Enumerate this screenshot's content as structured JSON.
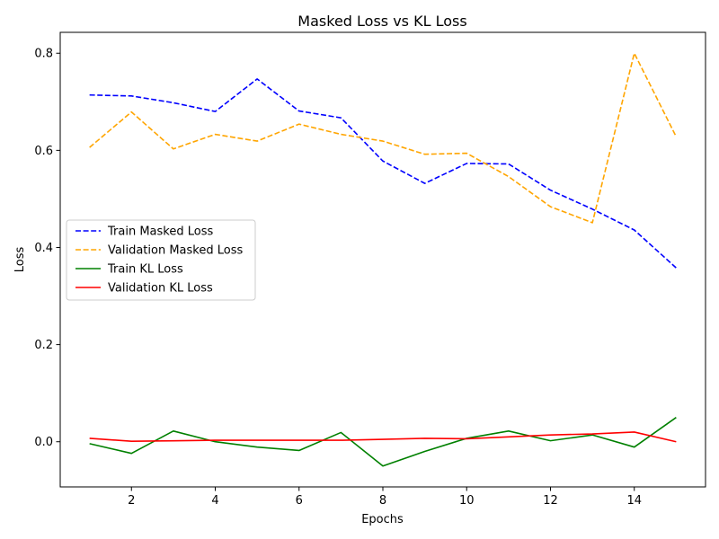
{
  "chart_data": {
    "type": "line",
    "title": "Masked Loss vs KL Loss",
    "xlabel": "Epochs",
    "ylabel": "Loss",
    "xlim": [
      0.3,
      15.7
    ],
    "ylim": [
      -0.093,
      0.843
    ],
    "xticks": [
      2,
      4,
      6,
      8,
      10,
      12,
      14
    ],
    "yticks": [
      0.0,
      0.2,
      0.4,
      0.6,
      0.8
    ],
    "ytick_labels": [
      "0.0",
      "0.2",
      "0.4",
      "0.6",
      "0.8"
    ],
    "grid": false,
    "legend_position": "center-left",
    "x": [
      1,
      2,
      3,
      4,
      5,
      6,
      7,
      8,
      9,
      10,
      11,
      12,
      13,
      14,
      15
    ],
    "series": [
      {
        "name": "Train Masked Loss",
        "color": "#0000ff",
        "dash": "dashed",
        "values": [
          0.714,
          0.712,
          0.698,
          0.68,
          0.747,
          0.681,
          0.667,
          0.578,
          0.532,
          0.573,
          0.572,
          0.518,
          0.479,
          0.436,
          0.358
        ]
      },
      {
        "name": "Validation Masked Loss",
        "color": "#ffa500",
        "dash": "dashed",
        "values": [
          0.606,
          0.679,
          0.603,
          0.633,
          0.619,
          0.654,
          0.633,
          0.619,
          0.592,
          0.594,
          0.546,
          0.484,
          0.451,
          0.8,
          0.628
        ]
      },
      {
        "name": "Train KL Loss",
        "color": "#008000",
        "dash": "solid",
        "values": [
          -0.004,
          -0.024,
          0.022,
          0.0,
          -0.011,
          -0.018,
          0.019,
          -0.05,
          -0.02,
          0.007,
          0.022,
          0.002,
          0.014,
          -0.011,
          0.05
        ]
      },
      {
        "name": "Validation KL Loss",
        "color": "#ff0000",
        "dash": "solid",
        "values": [
          0.007,
          0.001,
          0.002,
          0.003,
          0.003,
          0.003,
          0.003,
          0.005,
          0.007,
          0.006,
          0.01,
          0.014,
          0.016,
          0.02,
          0.0
        ]
      }
    ]
  }
}
